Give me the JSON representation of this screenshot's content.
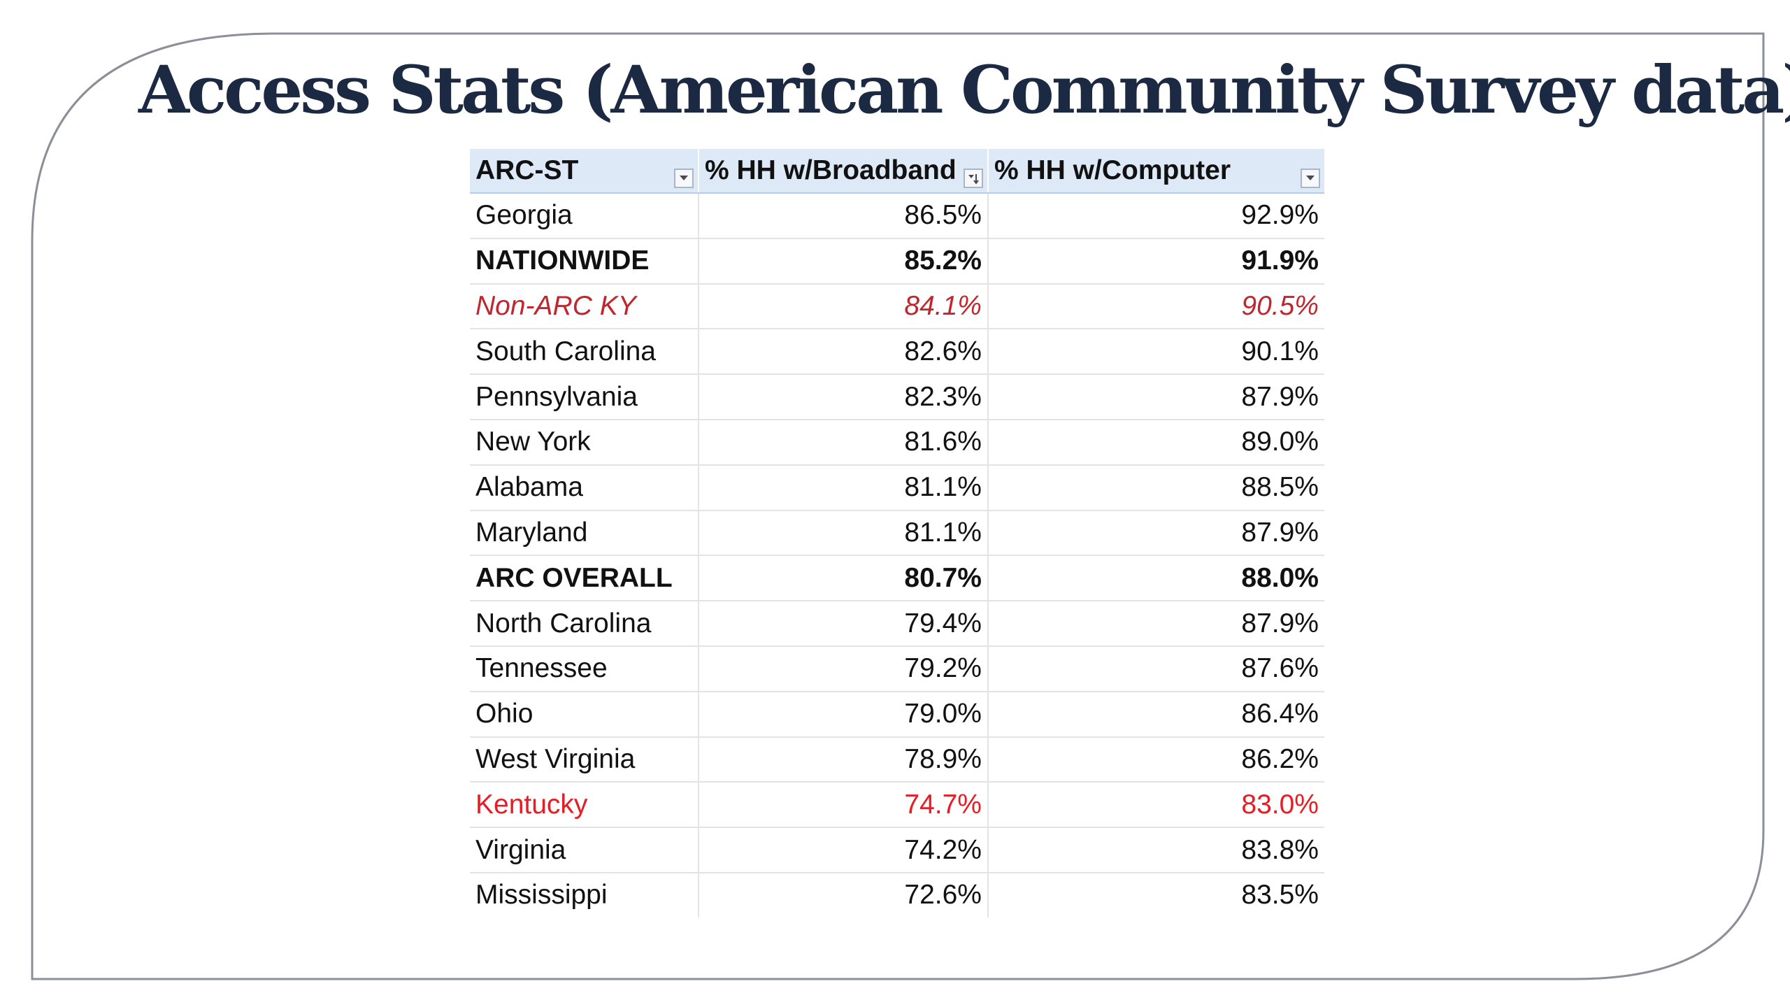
{
  "slide": {
    "title": "Access Stats (American Community Survey data)"
  },
  "table": {
    "headers": [
      "ARC-ST",
      "% HH w/Broadband",
      "% HH w/Computer"
    ],
    "rows": [
      {
        "region": "Georgia",
        "broadband": "86.5%",
        "computer": "92.9%",
        "style": "normal"
      },
      {
        "region": "NATIONWIDE",
        "broadband": "85.2%",
        "computer": "91.9%",
        "style": "bold"
      },
      {
        "region": "Non-ARC KY",
        "broadband": "84.1%",
        "computer": "90.5%",
        "style": "italic-red"
      },
      {
        "region": "South Carolina",
        "broadband": "82.6%",
        "computer": "90.1%",
        "style": "normal"
      },
      {
        "region": "Pennsylvania",
        "broadband": "82.3%",
        "computer": "87.9%",
        "style": "normal"
      },
      {
        "region": "New York",
        "broadband": "81.6%",
        "computer": "89.0%",
        "style": "normal"
      },
      {
        "region": "Alabama",
        "broadband": "81.1%",
        "computer": "88.5%",
        "style": "normal"
      },
      {
        "region": "Maryland",
        "broadband": "81.1%",
        "computer": "87.9%",
        "style": "normal"
      },
      {
        "region": "ARC OVERALL",
        "broadband": "80.7%",
        "computer": "88.0%",
        "style": "bold"
      },
      {
        "region": "North Carolina",
        "broadband": "79.4%",
        "computer": "87.9%",
        "style": "normal"
      },
      {
        "region": "Tennessee",
        "broadband": "79.2%",
        "computer": "87.6%",
        "style": "normal"
      },
      {
        "region": "Ohio",
        "broadband": "79.0%",
        "computer": "86.4%",
        "style": "normal"
      },
      {
        "region": "West Virginia",
        "broadband": "78.9%",
        "computer": "86.2%",
        "style": "normal"
      },
      {
        "region": "Kentucky",
        "broadband": "74.7%",
        "computer": "83.0%",
        "style": "red"
      },
      {
        "region": "Virginia",
        "broadband": "74.2%",
        "computer": "83.8%",
        "style": "normal"
      },
      {
        "region": "Mississippi",
        "broadband": "72.6%",
        "computer": "83.5%",
        "style": "normal"
      }
    ]
  },
  "colors": {
    "title": "#1c2942",
    "header_fill": "#dde9f6",
    "frame_line": "#8a8f98",
    "highlight_italic_red": "#c0262d",
    "highlight_red": "#e81c24"
  },
  "icons": {
    "filter_dropdown": "filter-dropdown-icon",
    "sort_descending_filter": "sort-descending-filter-icon"
  }
}
